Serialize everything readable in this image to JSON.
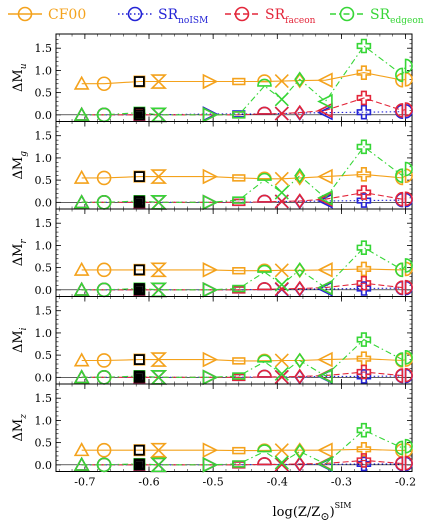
{
  "legend": [
    {
      "label": "CF00",
      "sub": "",
      "color": "#f4a21c",
      "dash": "solid",
      "marker": "circle"
    },
    {
      "label": "SR",
      "sub": "noISM",
      "color": "#2424d6",
      "dash": "dotted",
      "marker": "circle"
    },
    {
      "label": "SR",
      "sub": "faceon",
      "color": "#e3263a",
      "dash": "dashed",
      "marker": "circle"
    },
    {
      "label": "SR",
      "sub": "edgeon",
      "color": "#36d636",
      "dash": "dashdot",
      "marker": "circle"
    }
  ],
  "xaxis": {
    "label_main": "log(Z/Z",
    "label_sun": "⊙",
    "label_close": ")",
    "label_sup": "SIM",
    "ticks": [
      "-0.7",
      "-0.6",
      "-0.5",
      "-0.4",
      "-0.3",
      "-0.2"
    ]
  },
  "yticks": [
    "0.0",
    "0.5",
    "1.0",
    "1.5"
  ],
  "chart_data": {
    "type": "scatter",
    "xlim": [
      -0.745,
      -0.19
    ],
    "ylim": [
      -0.15,
      1.82
    ],
    "x": [
      -0.705,
      -0.67,
      -0.615,
      -0.585,
      -0.505,
      -0.46,
      -0.42,
      -0.393,
      -0.365,
      -0.325,
      -0.265,
      -0.205,
      -0.2
    ],
    "markers": [
      "triangle",
      "circle",
      "square",
      "hourglass",
      "triangle-right",
      "rect",
      "half-circle",
      "x",
      "diamond",
      "triangle-left",
      "plus",
      "half-circle-left",
      "half-circle-right"
    ],
    "panels": [
      {
        "ylabel": "ΔM",
        "ysub": "u",
        "series": [
          {
            "name": "CF00",
            "y": [
              0.7,
              0.7,
              0.75,
              0.75,
              0.75,
              0.75,
              0.75,
              0.76,
              0.77,
              0.78,
              0.95,
              0.78,
              0.8
            ]
          },
          {
            "name": "SR noISM",
            "y": [
              0.0,
              0.0,
              0.0,
              0.0,
              0.02,
              0.02,
              0.02,
              0.03,
              0.04,
              0.05,
              0.06,
              0.07,
              0.08
            ]
          },
          {
            "name": "SR faceon",
            "y": [
              0.0,
              0.0,
              0.0,
              0.0,
              0.0,
              0.0,
              0.02,
              0.03,
              0.05,
              0.1,
              0.38,
              0.1,
              0.12
            ]
          },
          {
            "name": "SR edgeon",
            "y": [
              0.0,
              0.0,
              0.05,
              0.0,
              0.0,
              0.0,
              0.65,
              0.35,
              0.8,
              0.3,
              1.55,
              0.9,
              1.1
            ]
          }
        ]
      },
      {
        "ylabel": "ΔM",
        "ysub": "g",
        "series": [
          {
            "name": "CF00",
            "y": [
              0.55,
              0.55,
              0.58,
              0.58,
              0.58,
              0.55,
              0.53,
              0.53,
              0.55,
              0.58,
              0.63,
              0.55,
              0.6
            ]
          },
          {
            "name": "SR noISM",
            "y": [
              0.0,
              0.0,
              0.0,
              0.0,
              0.0,
              0.0,
              0.01,
              0.02,
              0.02,
              0.03,
              0.04,
              0.05,
              0.05
            ]
          },
          {
            "name": "SR faceon",
            "y": [
              0.0,
              0.0,
              0.0,
              0.0,
              0.0,
              0.0,
              0.01,
              0.02,
              0.03,
              0.07,
              0.22,
              0.07,
              0.08
            ]
          },
          {
            "name": "SR edgeon",
            "y": [
              0.0,
              0.0,
              0.03,
              0.0,
              0.0,
              0.05,
              0.5,
              0.22,
              0.6,
              0.1,
              1.25,
              0.6,
              0.75
            ]
          }
        ]
      },
      {
        "ylabel": "ΔM",
        "ysub": "r",
        "series": [
          {
            "name": "CF00",
            "y": [
              0.45,
              0.45,
              0.45,
              0.45,
              0.45,
              0.43,
              0.43,
              0.44,
              0.44,
              0.45,
              0.47,
              0.45,
              0.47
            ]
          },
          {
            "name": "SR noISM",
            "y": [
              0.0,
              0.0,
              0.0,
              0.0,
              0.0,
              0.0,
              0.01,
              0.01,
              0.02,
              0.02,
              0.03,
              0.04,
              0.04
            ]
          },
          {
            "name": "SR faceon",
            "y": [
              0.0,
              0.0,
              0.0,
              0.0,
              0.0,
              0.0,
              0.01,
              0.02,
              0.03,
              0.05,
              0.15,
              0.05,
              0.06
            ]
          },
          {
            "name": "SR edgeon",
            "y": [
              0.0,
              0.0,
              0.03,
              0.0,
              0.0,
              0.03,
              0.4,
              0.12,
              0.45,
              0.05,
              0.95,
              0.45,
              0.55
            ]
          }
        ]
      },
      {
        "ylabel": "ΔM",
        "ysub": "i",
        "series": [
          {
            "name": "CF00",
            "y": [
              0.38,
              0.38,
              0.4,
              0.4,
              0.4,
              0.37,
              0.37,
              0.38,
              0.38,
              0.4,
              0.42,
              0.38,
              0.4
            ]
          },
          {
            "name": "SR noISM",
            "y": [
              0.0,
              0.0,
              0.0,
              0.0,
              0.0,
              0.0,
              0.01,
              0.01,
              0.01,
              0.02,
              0.02,
              0.03,
              0.03
            ]
          },
          {
            "name": "SR faceon",
            "y": [
              0.0,
              0.0,
              0.0,
              0.0,
              0.0,
              0.0,
              0.01,
              0.01,
              0.02,
              0.04,
              0.12,
              0.04,
              0.05
            ]
          },
          {
            "name": "SR edgeon",
            "y": [
              0.0,
              0.0,
              0.03,
              0.0,
              0.0,
              0.03,
              0.35,
              0.08,
              0.38,
              0.03,
              0.85,
              0.4,
              0.45
            ]
          }
        ]
      },
      {
        "ylabel": "ΔM",
        "ysub": "z",
        "series": [
          {
            "name": "CF00",
            "y": [
              0.33,
              0.33,
              0.33,
              0.33,
              0.33,
              0.32,
              0.32,
              0.33,
              0.33,
              0.33,
              0.35,
              0.32,
              0.33
            ]
          },
          {
            "name": "SR noISM",
            "y": [
              0.0,
              0.0,
              0.0,
              0.0,
              0.0,
              0.0,
              0.01,
              0.01,
              0.01,
              0.01,
              0.02,
              0.02,
              0.02
            ]
          },
          {
            "name": "SR faceon",
            "y": [
              0.0,
              0.0,
              0.0,
              0.0,
              0.0,
              0.0,
              0.01,
              0.01,
              0.02,
              0.03,
              0.1,
              0.03,
              0.04
            ]
          },
          {
            "name": "SR edgeon",
            "y": [
              0.0,
              0.0,
              0.02,
              0.0,
              0.0,
              0.02,
              0.3,
              0.05,
              0.3,
              0.02,
              0.78,
              0.38,
              0.42
            ]
          }
        ]
      }
    ],
    "highlight_x_index": 2,
    "highlight_note": "black open square at each series point, filled black square at y=0"
  }
}
